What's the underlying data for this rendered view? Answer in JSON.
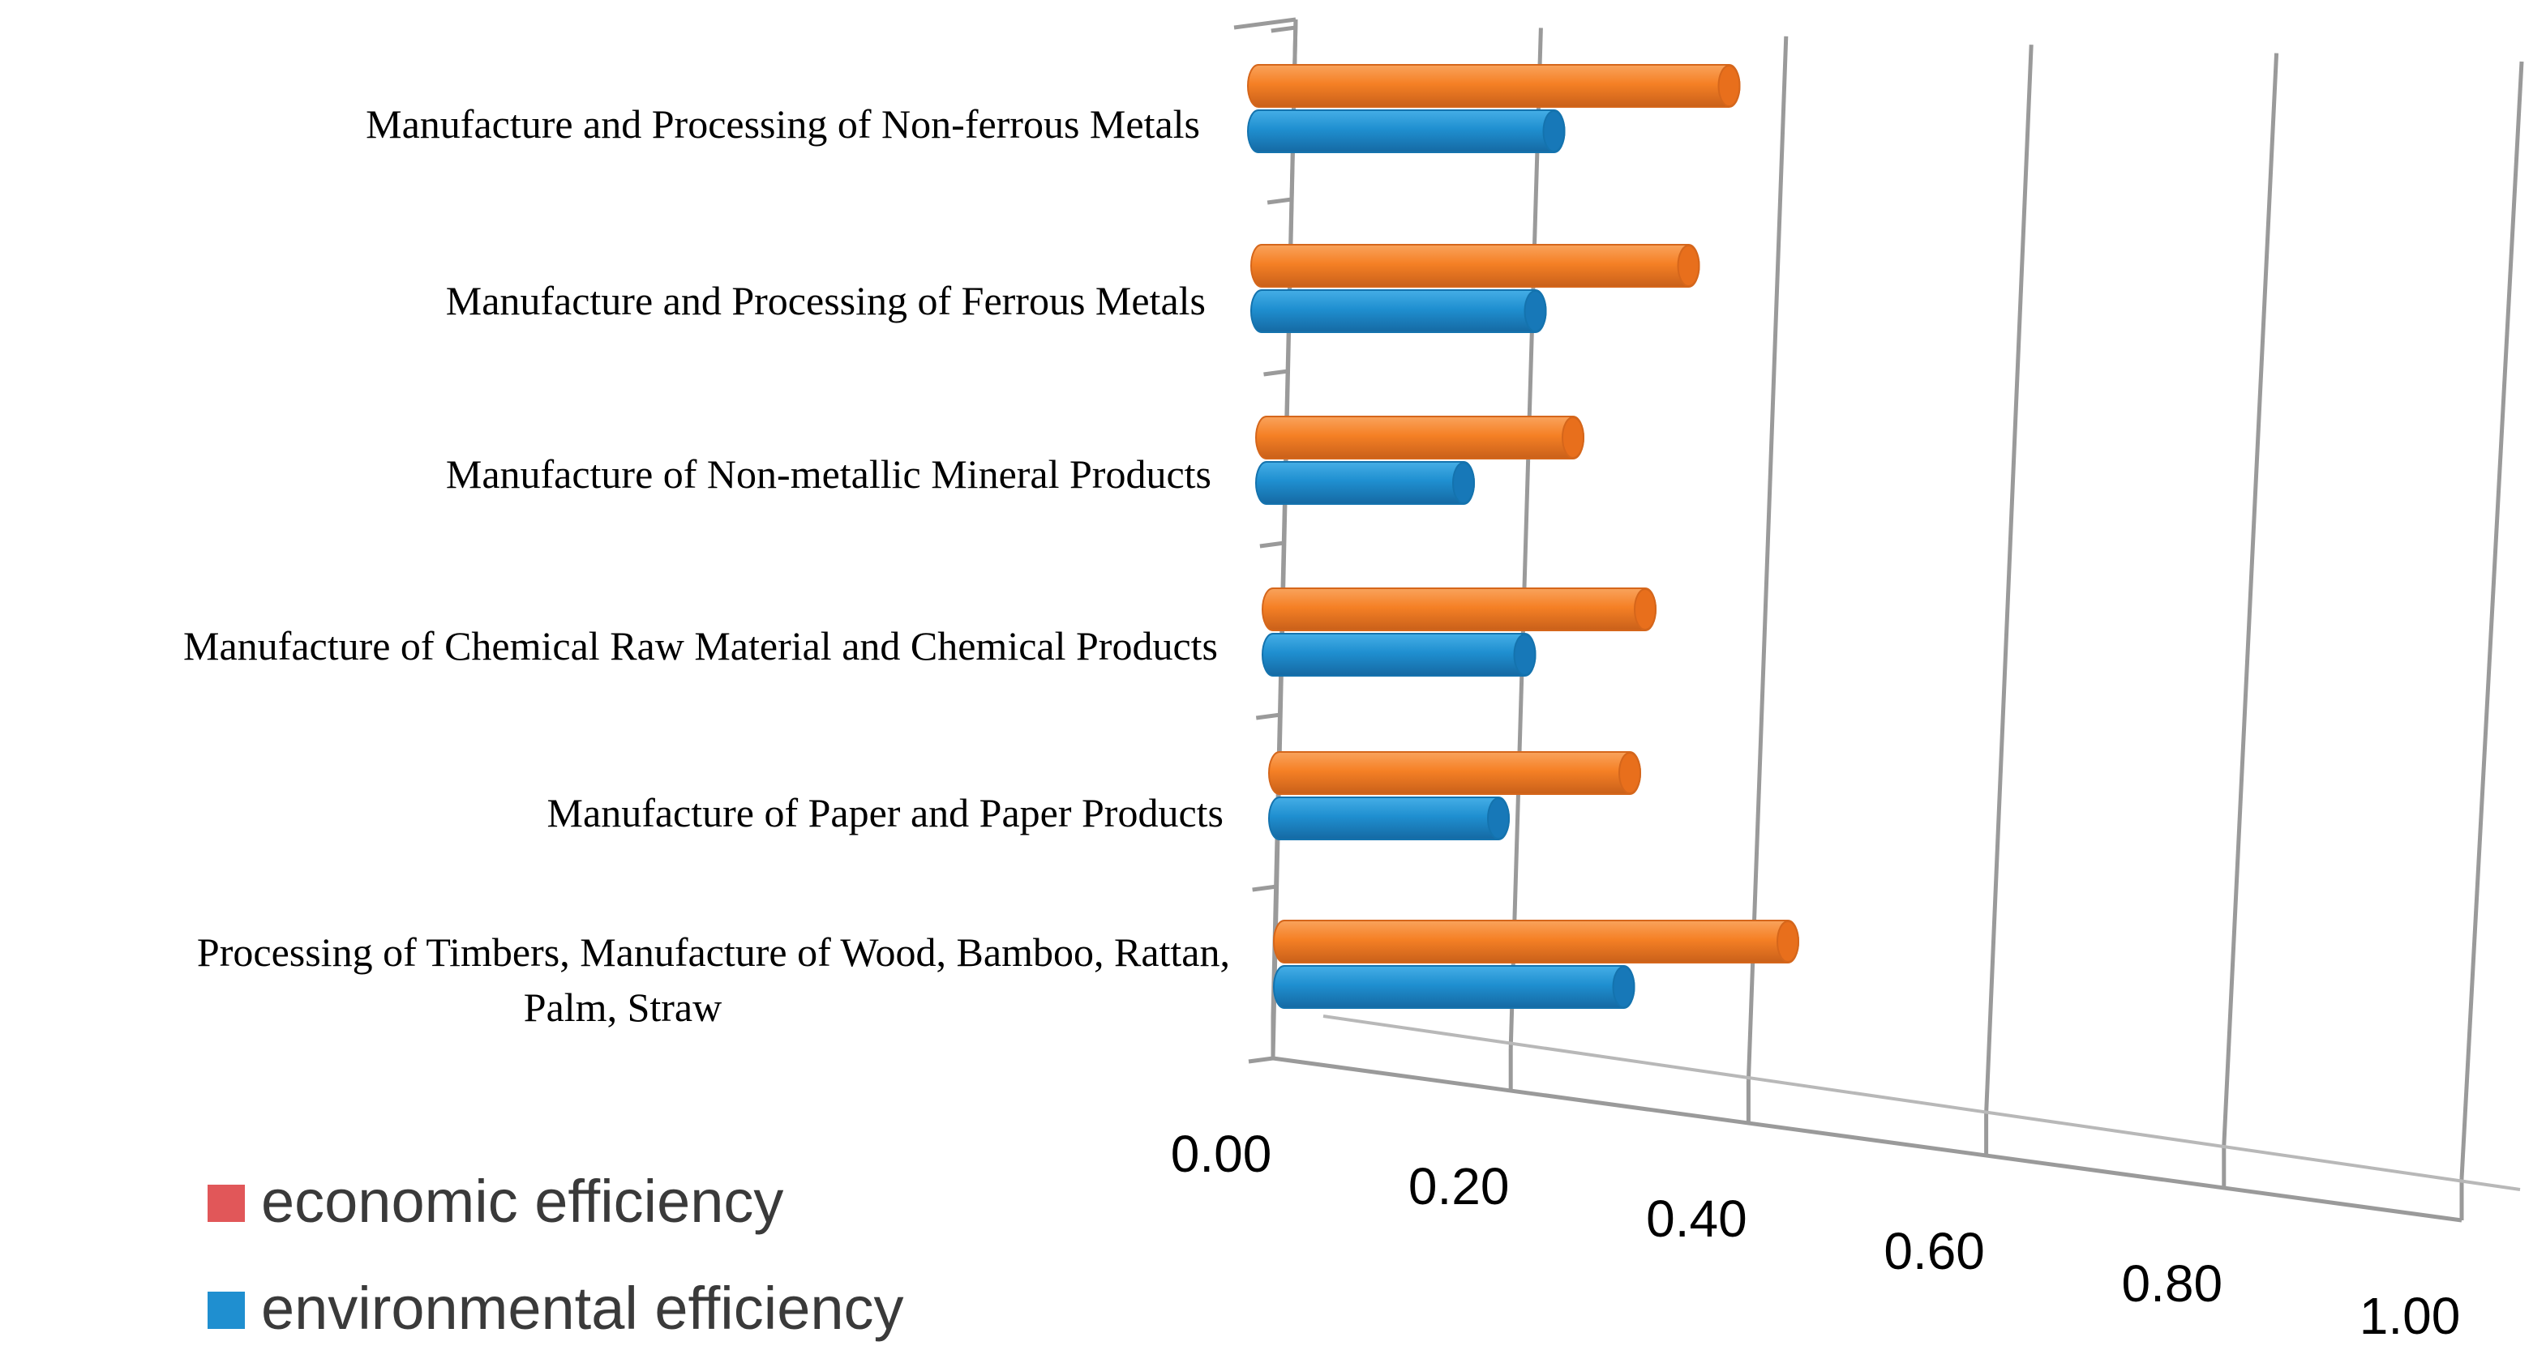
{
  "chart_data": {
    "type": "bar",
    "orientation": "horizontal",
    "style": "3d-cylinder",
    "title": "",
    "xlabel": "",
    "ylabel": "",
    "xlim": [
      0,
      1.0
    ],
    "x_ticks": [
      "0.00",
      "0.20",
      "0.40",
      "0.60",
      "0.80",
      "1.00"
    ],
    "categories": [
      [
        "Manufacture and Processing of Non-ferrous Metals"
      ],
      [
        "Manufacture and Processing of Ferrous Metals"
      ],
      [
        "Manufacture of Non-metallic Mineral Products"
      ],
      [
        "Manufacture of Chemical Raw Material and Chemical Products"
      ],
      [
        "Manufacture of  Paper and Paper Products"
      ],
      [
        "Processing of Timbers, Manufacture of Wood, Bamboo, Rattan,",
        "Palm, Straw"
      ]
    ],
    "series": [
      {
        "name": "economic efficiency",
        "color": "#F58025",
        "legend_color": "#E15759",
        "values": [
          0.43,
          0.39,
          0.28,
          0.34,
          0.32,
          0.46
        ]
      },
      {
        "name": "environmental efficiency",
        "color": "#1F8FD0",
        "legend_color": "#1F8FD0",
        "values": [
          0.27,
          0.25,
          0.18,
          0.23,
          0.2,
          0.31
        ]
      }
    ],
    "legend_position": "bottom-left",
    "grid": true
  }
}
